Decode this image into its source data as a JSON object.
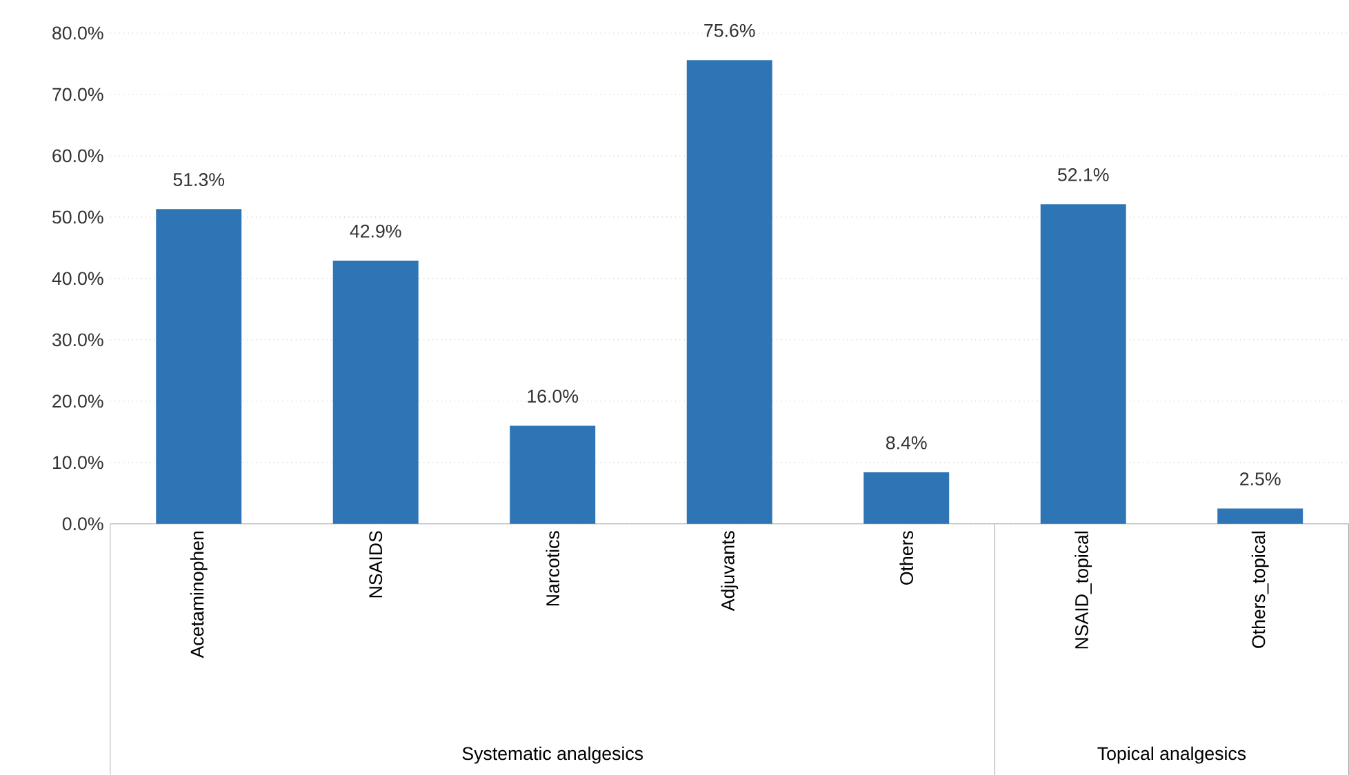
{
  "chart_data": {
    "type": "bar",
    "categories": [
      "Acetaminophen",
      "NSAIDS",
      "Narcotics",
      "Adjuvants",
      "Others",
      "NSAID_topical",
      "Others_topical"
    ],
    "values": [
      51.3,
      42.9,
      16.0,
      75.6,
      8.4,
      52.1,
      2.5
    ],
    "value_labels": [
      "51.3%",
      "42.9%",
      "16.0%",
      "75.6%",
      "8.4%",
      "52.1%",
      "2.5%"
    ],
    "color": "#2e75b6",
    "ylim": [
      0,
      80
    ],
    "yticks": [
      {
        "value": 0,
        "label": "0.0%"
      },
      {
        "value": 10,
        "label": "10.0%"
      },
      {
        "value": 20,
        "label": "20.0%"
      },
      {
        "value": 30,
        "label": "30.0%"
      },
      {
        "value": 40,
        "label": "40.0%"
      },
      {
        "value": 50,
        "label": "50.0%"
      },
      {
        "value": 60,
        "label": "60.0%"
      },
      {
        "value": 70,
        "label": "70.0%"
      },
      {
        "value": 80,
        "label": "80.0%"
      }
    ],
    "grid": "y",
    "annotations": [
      "Systematic analgesics",
      "Topical analgesics"
    ]
  }
}
